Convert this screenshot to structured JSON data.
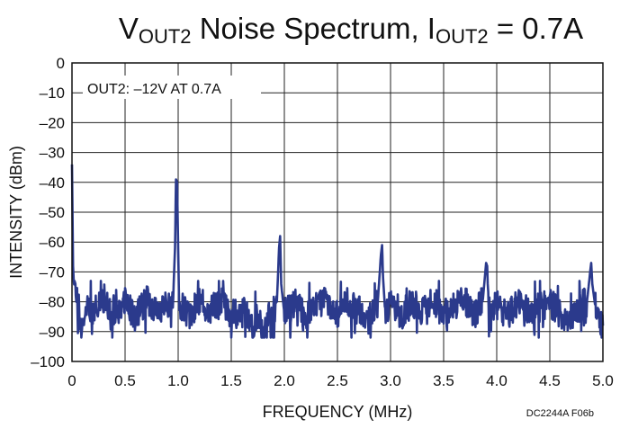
{
  "chart_data": {
    "type": "line",
    "title": {
      "main": "V",
      "sub1": "OUT2",
      "mid": " Noise Spectrum, I",
      "sub2": "OUT2",
      "end": " = 0.7A"
    },
    "xlabel": "FREQUENCY (MHz)",
    "ylabel": "INTENSITY (dBm)",
    "xlim": [
      0,
      5.0
    ],
    "ylim": [
      -100,
      0
    ],
    "xticks": [
      "0",
      "0.5",
      "1.0",
      "1.5",
      "2.0",
      "2.5",
      "3.0",
      "3.5",
      "4.0",
      "4.5",
      "5.0"
    ],
    "yticks": [
      "0",
      "–10",
      "–20",
      "–30",
      "–40",
      "–50",
      "–60",
      "–70",
      "–80",
      "–90",
      "–100"
    ],
    "grid": true,
    "annotation": "OUT2: –12V AT 0.7A",
    "figure_id": "DC2244A F06b",
    "line_color": "#2b3a8c",
    "series": [
      {
        "noise_floor_dbm": -82,
        "noise_range_dbm": [
          -92,
          -73
        ],
        "x": [
          0.0,
          0.01,
          0.02,
          0.04,
          0.06,
          0.08,
          0.1,
          0.15,
          0.2,
          0.3,
          0.4,
          0.5,
          0.6,
          0.7,
          0.8,
          0.9,
          0.95,
          0.97,
          0.98,
          0.99,
          1.0,
          1.01,
          1.05,
          1.1,
          1.2,
          1.3,
          1.4,
          1.5,
          1.6,
          1.7,
          1.75,
          1.8,
          1.85,
          1.9,
          1.93,
          1.95,
          1.96,
          1.97,
          2.0,
          2.1,
          2.2,
          2.3,
          2.4,
          2.5,
          2.6,
          2.7,
          2.8,
          2.88,
          2.91,
          2.92,
          2.93,
          2.95,
          3.0,
          3.1,
          3.2,
          3.3,
          3.4,
          3.5,
          3.6,
          3.7,
          3.8,
          3.87,
          3.9,
          3.91,
          3.92,
          3.95,
          4.0,
          4.1,
          4.2,
          4.3,
          4.4,
          4.5,
          4.6,
          4.7,
          4.8,
          4.85,
          4.88,
          4.89,
          4.9,
          4.93,
          4.96,
          5.0
        ],
        "y": [
          -34,
          -68,
          -76,
          -80,
          -84,
          -91,
          -86,
          -81,
          -83,
          -79,
          -84,
          -80,
          -85,
          -79,
          -83,
          -80,
          -82,
          -62,
          -39,
          -40,
          -62,
          -84,
          -81,
          -85,
          -80,
          -83,
          -79,
          -84,
          -82,
          -88,
          -85,
          -91,
          -83,
          -86,
          -80,
          -62,
          -58,
          -74,
          -84,
          -80,
          -85,
          -82,
          -79,
          -84,
          -80,
          -83,
          -86,
          -80,
          -64,
          -61,
          -72,
          -84,
          -81,
          -85,
          -80,
          -83,
          -79,
          -84,
          -82,
          -80,
          -84,
          -79,
          -67,
          -68,
          -80,
          -84,
          -81,
          -85,
          -80,
          -83,
          -82,
          -80,
          -84,
          -86,
          -81,
          -80,
          -70,
          -67,
          -74,
          -82,
          -84,
          -88
        ]
      }
    ]
  }
}
